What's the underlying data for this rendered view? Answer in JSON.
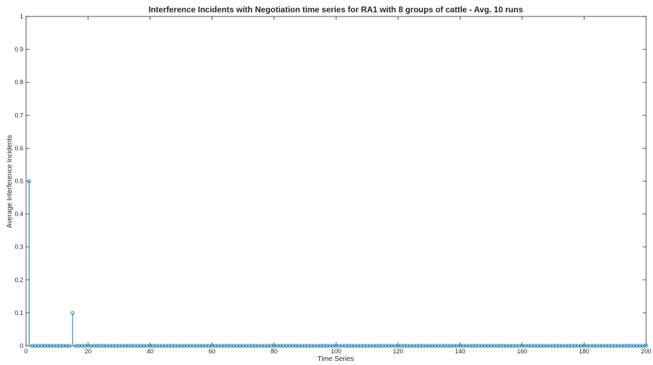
{
  "chart_data": {
    "type": "stem",
    "title": "Interference Incidents with Negotiation time series for RA1 with 8 groups of cattle - Avg. 10 runs",
    "xlabel": "Time Series",
    "ylabel": "Average Interference Incidents",
    "xlim": [
      0,
      200
    ],
    "ylim": [
      0,
      1
    ],
    "xticks": [
      0,
      20,
      40,
      60,
      80,
      100,
      120,
      140,
      160,
      180,
      200
    ],
    "yticks": [
      0,
      0.1,
      0.2,
      0.3,
      0.4,
      0.5,
      0.6,
      0.7,
      0.8,
      0.9,
      1
    ],
    "grid": false,
    "series": [
      {
        "x_start": 1,
        "x_end": 200,
        "default_value": 0,
        "nonzero_points": [
          {
            "x": 1,
            "y": 0.5
          },
          {
            "x": 15,
            "y": 0.1
          }
        ],
        "color": "#0072bd"
      }
    ]
  }
}
